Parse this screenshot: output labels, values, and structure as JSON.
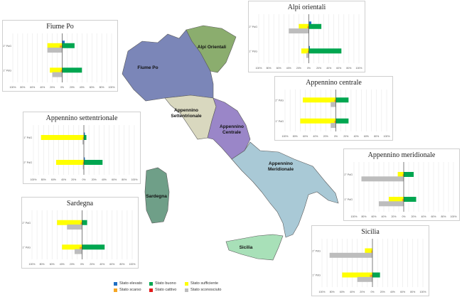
{
  "colors": {
    "stato_elevato": "#1f6fc4",
    "stato_buono": "#00a650",
    "stato_sufficiente": "#ffff00",
    "stato_scarso": "#f5a623",
    "stato_cattivo": "#e21b1b",
    "stato_sconosciuto": "#bdbdbd"
  },
  "map": {
    "regions": [
      {
        "id": "fiume-po",
        "label": [
          "Fiume Po"
        ],
        "color": "#7b86b8"
      },
      {
        "id": "alpi-orientali",
        "label": [
          "Alpi Orientali"
        ],
        "color": "#8bad6e"
      },
      {
        "id": "appennino-settentrionale",
        "label": [
          "Appennino",
          "Settentrionale"
        ],
        "color": "#d9d8bf"
      },
      {
        "id": "appennino-centrale",
        "label": [
          "Appennino",
          "Centrale"
        ],
        "color": "#9a86c8"
      },
      {
        "id": "appennino-meridionale",
        "label": [
          "Appennino",
          "Meridionale"
        ],
        "color": "#a9c9d6"
      },
      {
        "id": "sardegna",
        "label": [
          "Sardegna"
        ],
        "color": "#6f9f88"
      },
      {
        "id": "sicilia",
        "label": [
          "Sicilia"
        ],
        "color": "#a8e0b8"
      }
    ]
  },
  "legend": {
    "items": [
      {
        "key": "stato_elevato",
        "label": "Stato elevato"
      },
      {
        "key": "stato_buono",
        "label": "Stato buono"
      },
      {
        "key": "stato_sufficiente",
        "label": "Stato sufficiente"
      },
      {
        "key": "stato_scarso",
        "label": "Stato scarso"
      },
      {
        "key": "stato_cattivo",
        "label": "Stato cattivo"
      },
      {
        "key": "stato_sconosciuto",
        "label": "Stato sconosciuto"
      }
    ]
  },
  "chart_data": [
    {
      "type": "bar",
      "id": "fiume-po",
      "title": "Fiume Po",
      "categories": [
        "2° PdG",
        "1° PdG"
      ],
      "xlim": [
        -100,
        100
      ],
      "tick_labels": [
        "100%",
        "80%",
        "60%",
        "40%",
        "20%",
        "0%",
        "20%",
        "40%",
        "60%",
        "80%",
        "100%"
      ],
      "series": [
        {
          "key": "stato_sufficiente",
          "values": [
            -30,
            -25
          ]
        },
        {
          "key": "stato_scarso",
          "values": [
            -5,
            -3
          ]
        },
        {
          "key": "stato_sconosciuto",
          "values": [
            -30,
            -20
          ]
        },
        {
          "key": "stato_elevato",
          "values": [
            5,
            0
          ]
        },
        {
          "key": "stato_buono",
          "values": [
            25,
            40
          ]
        }
      ]
    },
    {
      "type": "bar",
      "id": "alpi-orientali",
      "title": "Alpi orientali",
      "categories": [
        "2° PdG",
        "1° PdG"
      ],
      "xlim": [
        -100,
        100
      ],
      "tick_labels": [
        "100%",
        "80%",
        "60%",
        "40%",
        "20%",
        "0%",
        "20%",
        "40%",
        "60%",
        "80%",
        "100%"
      ],
      "series": [
        {
          "key": "stato_sufficiente",
          "values": [
            -20,
            -15
          ]
        },
        {
          "key": "stato_scarso",
          "values": [
            -3,
            -2
          ]
        },
        {
          "key": "stato_sconosciuto",
          "values": [
            -40,
            -5
          ]
        },
        {
          "key": "stato_elevato",
          "values": [
            5,
            2
          ]
        },
        {
          "key": "stato_buono",
          "values": [
            25,
            65
          ]
        }
      ]
    },
    {
      "type": "bar",
      "id": "appennino-settentrionale",
      "title": "Appennino settentrionale",
      "categories": [
        "1° PdG",
        "2° PdG"
      ],
      "xlim": [
        -100,
        100
      ],
      "tick_labels": [
        "100%",
        "80%",
        "60%",
        "40%",
        "20%",
        "0%",
        "20%",
        "40%",
        "60%",
        "80%",
        "100%"
      ],
      "series": [
        {
          "key": "stato_sufficiente",
          "values": [
            -85,
            -55
          ]
        },
        {
          "key": "stato_scarso",
          "values": [
            -2,
            -2
          ]
        },
        {
          "key": "stato_sconosciuto",
          "values": [
            -3,
            -2
          ]
        },
        {
          "key": "stato_elevato",
          "values": [
            2,
            2
          ]
        },
        {
          "key": "stato_buono",
          "values": [
            5,
            37
          ]
        }
      ]
    },
    {
      "type": "bar",
      "id": "appennino-centrale",
      "title": "Appennino centrale",
      "categories": [
        "2° PdG",
        "1° PdG"
      ],
      "xlim": [
        -100,
        100
      ],
      "tick_labels": [
        "100%",
        "80%",
        "60%",
        "40%",
        "20%",
        "0%",
        "20%",
        "40%",
        "60%",
        "80%",
        "100%"
      ],
      "series": [
        {
          "key": "stato_sufficiente",
          "values": [
            -65,
            -70
          ]
        },
        {
          "key": "stato_scarso",
          "values": [
            -3,
            -3
          ]
        },
        {
          "key": "stato_sconosciuto",
          "values": [
            -10,
            -10
          ]
        },
        {
          "key": "stato_elevato",
          "values": [
            0,
            0
          ]
        },
        {
          "key": "stato_buono",
          "values": [
            25,
            25
          ]
        }
      ]
    },
    {
      "type": "bar",
      "id": "appennino-meridionale",
      "title": "Appennino meridionale",
      "categories": [
        "2° PdG",
        "1° PdG"
      ],
      "xlim": [
        -100,
        100
      ],
      "tick_labels": [
        "100%",
        "80%",
        "60%",
        "40%",
        "20%",
        "0%",
        "20%",
        "40%",
        "60%",
        "80%",
        "100%"
      ],
      "series": [
        {
          "key": "stato_sufficiente",
          "values": [
            -12,
            -30
          ]
        },
        {
          "key": "stato_scarso",
          "values": [
            -2,
            -3
          ]
        },
        {
          "key": "stato_sconosciuto",
          "values": [
            -85,
            -50
          ]
        },
        {
          "key": "stato_elevato",
          "values": [
            0,
            0
          ]
        },
        {
          "key": "stato_buono",
          "values": [
            20,
            25
          ]
        }
      ]
    },
    {
      "type": "bar",
      "id": "sardegna",
      "title": "Sardegna",
      "categories": [
        "2° PdG",
        "1° PdG"
      ],
      "xlim": [
        -100,
        100
      ],
      "tick_labels": [
        "100%",
        "80%",
        "60%",
        "40%",
        "20%",
        "0%",
        "20%",
        "40%",
        "60%",
        "80%",
        "100%"
      ],
      "series": [
        {
          "key": "stato_sufficiente",
          "values": [
            -50,
            -40
          ]
        },
        {
          "key": "stato_scarso",
          "values": [
            -3,
            -5
          ]
        },
        {
          "key": "stato_sconosciuto",
          "values": [
            -30,
            -15
          ]
        },
        {
          "key": "stato_elevato",
          "values": [
            0,
            0
          ]
        },
        {
          "key": "stato_buono",
          "values": [
            10,
            45
          ]
        }
      ]
    },
    {
      "type": "bar",
      "id": "sicilia",
      "title": "Sicilia",
      "categories": [
        "2° PdG",
        "1° PdG"
      ],
      "xlim": [
        -100,
        100
      ],
      "tick_labels": [
        "100%",
        "80%",
        "60%",
        "40%",
        "20%",
        "0%",
        "20%",
        "40%",
        "60%",
        "80%",
        "100%"
      ],
      "series": [
        {
          "key": "stato_sufficiente",
          "values": [
            -15,
            -60
          ]
        },
        {
          "key": "stato_scarso",
          "values": [
            -2,
            -5
          ]
        },
        {
          "key": "stato_sconosciuto",
          "values": [
            -85,
            -30
          ]
        },
        {
          "key": "stato_elevato",
          "values": [
            0,
            0
          ]
        },
        {
          "key": "stato_buono",
          "values": [
            0,
            15
          ]
        }
      ]
    }
  ]
}
